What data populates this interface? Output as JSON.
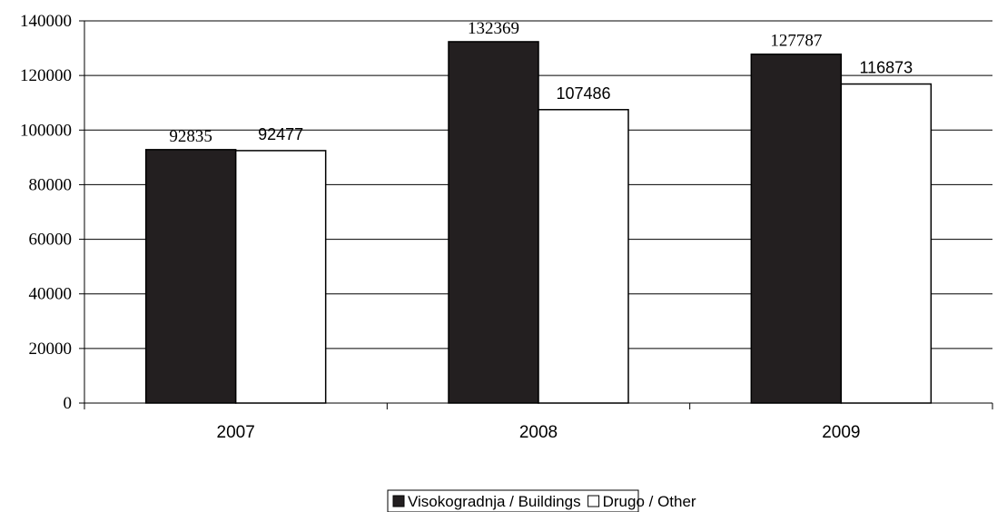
{
  "chart_data": {
    "type": "bar",
    "title": "",
    "xlabel": "",
    "ylabel": "",
    "categories": [
      "2007",
      "2008",
      "2009"
    ],
    "series": [
      {
        "name": "Visokogradnja / Buildings",
        "values": [
          92835,
          132369,
          127787
        ],
        "color": "#231f20"
      },
      {
        "name": "Drugo / Other",
        "values": [
          92477,
          107486,
          116873
        ],
        "color": "#ffffff"
      }
    ],
    "ylim": [
      0,
      140000
    ],
    "yticks": [
      0,
      20000,
      40000,
      60000,
      80000,
      100000,
      120000,
      140000
    ],
    "grid": true,
    "legend_position": "bottom-center"
  }
}
